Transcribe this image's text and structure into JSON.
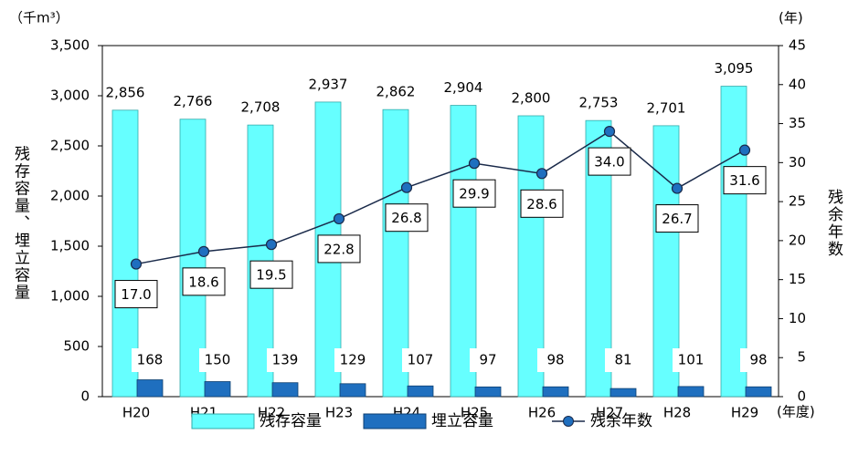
{
  "chart_data": {
    "type": "bar",
    "y_unit": "（千m³）",
    "y2_unit": "(年)",
    "x_unit": "(年度)",
    "y_label": "残存容量、埋立容量",
    "y2_label": "残余年数",
    "categories": [
      "H20",
      "H21",
      "H22",
      "H23",
      "H24",
      "H25",
      "H26",
      "H27",
      "H28",
      "H29"
    ],
    "series": [
      {
        "name": "残存容量",
        "color": "#66ffff",
        "values": [
          2856,
          2766,
          2708,
          2937,
          2862,
          2904,
          2800,
          2753,
          2701,
          3095
        ],
        "value_labels": [
          "2,856",
          "2,766",
          "2,708",
          "2,937",
          "2,862",
          "2,904",
          "2,800",
          "2,753",
          "2,701",
          "3,095"
        ]
      },
      {
        "name": "埋立容量",
        "color": "#1f6fbf",
        "values": [
          168,
          150,
          139,
          129,
          107,
          97,
          98,
          81,
          101,
          98
        ]
      },
      {
        "name": "残余年数",
        "color": "#1f6fbf",
        "type": "line",
        "axis": "y2",
        "values": [
          17,
          18.6,
          19.5,
          22.8,
          26.8,
          29.9,
          28.6,
          34,
          26.7,
          31.6
        ],
        "value_labels": [
          "17.0",
          "18.6",
          "19.5",
          "22.8",
          "26.8",
          "29.9",
          "28.6",
          "34.0",
          "26.7",
          "31.6"
        ]
      }
    ],
    "ylim": [
      0,
      3500
    ],
    "yticks": [
      0,
      {
        "value": 500,
        "label": "500"
      },
      {
        "value": 1000,
        "label": "1,000"
      },
      {
        "value": 1500,
        "label": "1,500"
      },
      {
        "value": 2000,
        "label": "2,000"
      },
      {
        "value": 2500,
        "label": "2,500"
      },
      {
        "value": 3000,
        "label": "3,000"
      },
      {
        "value": 3500,
        "label": "3,500"
      }
    ],
    "y2lim": [
      0,
      45
    ],
    "y2ticks": [
      0,
      5,
      10,
      15,
      20,
      25,
      30,
      35,
      40,
      45
    ],
    "grid": false,
    "legend": "bottom"
  }
}
